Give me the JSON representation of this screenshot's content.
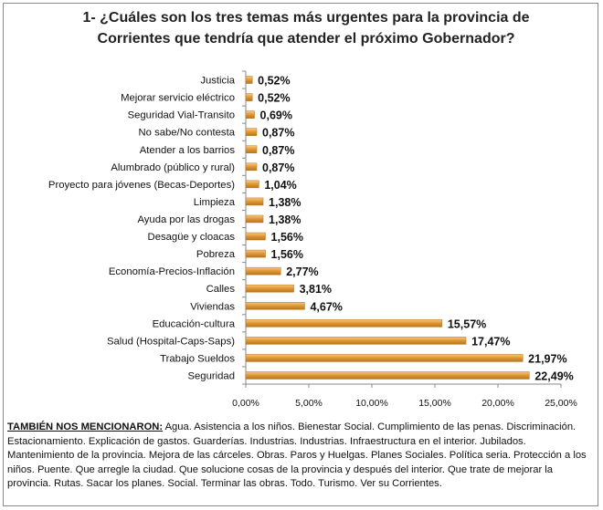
{
  "chart_data": {
    "type": "bar",
    "orientation": "horizontal",
    "title_line1": "1-  ¿Cuáles son los  tres temas más urgentes para la provincia de",
    "title_line2": "Corrientes que tendría que atender el próximo Gobernador?",
    "categories": [
      "Justicia",
      "Mejorar servicio eléctrico",
      "Seguridad Vial-Transito",
      "No sabe/No contesta",
      "Atender a los barrios",
      "Alumbrado (público y rural)",
      "Proyecto para jóvenes (Becas-Deportes)",
      "Limpieza",
      "Ayuda por las drogas",
      "Desagüe y cloacas",
      "Pobreza",
      "Economía-Precios-Inflación",
      "Calles",
      "Viviendas",
      "Educación-cultura",
      "Salud (Hospital-Caps-Saps)",
      "Trabajo Sueldos",
      "Seguridad"
    ],
    "values": [
      0.52,
      0.52,
      0.69,
      0.87,
      0.87,
      0.87,
      1.04,
      1.38,
      1.38,
      1.56,
      1.56,
      2.77,
      3.81,
      4.67,
      15.57,
      17.47,
      21.97,
      22.49
    ],
    "value_labels": [
      "0,52%",
      "0,52%",
      "0,69%",
      "0,87%",
      "0,87%",
      "0,87%",
      "1,04%",
      "1,38%",
      "1,38%",
      "1,56%",
      "1,56%",
      "2,77%",
      "3,81%",
      "4,67%",
      "15,57%",
      "17,47%",
      "21,97%",
      "22,49%"
    ],
    "xlim": [
      0,
      25
    ],
    "x_ticks": [
      0,
      5,
      10,
      15,
      20,
      25
    ],
    "x_tick_labels": [
      "0,00%",
      "5,00%",
      "10,00%",
      "15,00%",
      "20,00%",
      "25,00%"
    ],
    "grid": false,
    "bar_color": "#e39a35",
    "bar_color_light": "#f6c98a",
    "bar_color_dark": "#b8741c"
  },
  "footer": {
    "lead": "TAMBIÉN NOS MENCIONARON:",
    "text": " Agua. Asistencia a los niños. Bienestar Social. Cumplimiento de las penas. Discriminación. Estacionamiento. Explicación de gastos. Guarderías. Industrias. Industrias. Infraestructura en el interior. Jubilados. Mantenimiento de la provincia. Mejora de las cárceles. Obras. Paros y Huelgas. Planes Sociales. Política seria. Protección a los niños. Puente. Que arregle la ciudad. Que solucione cosas de la provincia y después del interior. Que trate de mejorar la provincia. Rutas. Sacar los planes. Social. Terminar las obras. Todo. Turismo. Ver su Corrientes."
  }
}
